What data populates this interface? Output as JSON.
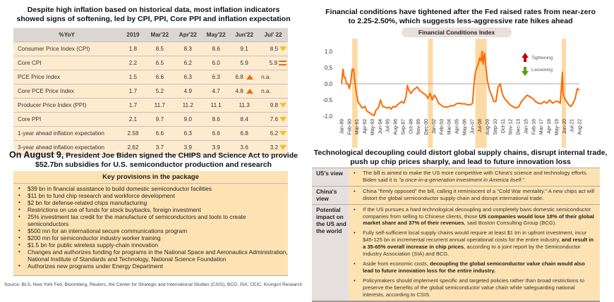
{
  "left_top": {
    "title_line1": "Despite high inflation based on historical data, most inflation indicators",
    "title_line2": "showed signs of softening, led by CPI, PPI, Core PPI and inflation expectation"
  },
  "inflation_table": {
    "headers": [
      "%YoY",
      "2019",
      "Mar'22",
      "Apr'22",
      "May'22",
      "Jun'22",
      "Jul' 22"
    ],
    "rows": [
      {
        "label": "Consumer Price Index (CPI)",
        "values": [
          "1.8",
          "8.5",
          "8.3",
          "8.6",
          "9.1"
        ],
        "last": "8.5",
        "trend": "down"
      },
      {
        "label": "Core CPI",
        "values": [
          "2.2",
          "6.5",
          "6.2",
          "6.0",
          "5.9"
        ],
        "last": "5.9",
        "trend": "flat"
      },
      {
        "label": "PCE Price Index",
        "values": [
          "1.5",
          "6.6",
          "6.3",
          "6.3",
          "6.8"
        ],
        "last": "n.a.",
        "trend": "up"
      },
      {
        "label": "Core PCE Price Index",
        "values": [
          "1.7",
          "5.2",
          "4.9",
          "4.7",
          "4.8"
        ],
        "last": "n.a.",
        "trend": "up"
      },
      {
        "label": "Producer Price Index (PPI)",
        "values": [
          "1.7",
          "11.7",
          "11.2",
          "11.1",
          "11.3"
        ],
        "last": "9.8",
        "trend": "down"
      },
      {
        "label": "Core PPI",
        "values": [
          "2.1",
          "9.7",
          "9.0",
          "8.6",
          "8.4"
        ],
        "last": "7.6",
        "trend": "down"
      },
      {
        "label": "1-year ahead inflation expectation",
        "values": [
          "2.58",
          "6.6",
          "6.3",
          "6.6",
          "6.8"
        ],
        "last": "6.2",
        "trend": "down"
      },
      {
        "label": "3-year ahead inflation expectation",
        "values": [
          "2.62",
          "3.7",
          "3.9",
          "3.9",
          "3.6"
        ],
        "last": "3.2",
        "trend": "down"
      }
    ],
    "trend_colors": {
      "down": "#f2c21b",
      "up": "#f26a0d",
      "flat": "#f26a0d"
    }
  },
  "chips_act": {
    "title_prefix": "On August 9,",
    "title_rest": " President Joe Biden signed the CHIPS and Science Act to provide",
    "title_line2": "$52.7bn subsidies for U.S. semiconductor production and research",
    "box_title": "Key provisions in the package",
    "items": [
      "$39 bn in financial assistance to build domestic semiconductor facilities",
      "$11 bn to fund chip research and workforce development",
      "$2 bn for defense-related chips manufacturing",
      "Restrictions on use of funds for stock buybacks, foreign investment",
      "25% investment tax credit for the manufacture of semiconductors and tools to create semiconductors",
      "$500 mn for an international secure communications program",
      "$200 mn for semiconductor industry worker training",
      "$1.5 bn for public wireless supply-chain innovation",
      "Changes and authorizes funding for programs in the National Space and Aeronautics Administration, National Institute of Standards and Technology, National Science Foundation",
      "Authorizes new programs under Energy Department"
    ]
  },
  "source": "Source: BLS, New York Fed, Bloomberg, Reuters, the Center for Strategic and International Studies (CSIS), BCG, SIA, CEIC, Krungsri Research",
  "right_top": {
    "title_line1": "Financial conditions have tightened after the Fed raised rates from near-zero",
    "title_line2": "to 2.25-2.50%, which suggests less-aggressive rate hikes ahead"
  },
  "chart_data": {
    "type": "line",
    "title": "Financial Conditions Index",
    "xlabel": "",
    "ylabel": "",
    "ylim": [
      -1.0,
      1.0
    ],
    "yticks": [
      "1.0",
      "0.5",
      "0.0",
      "-0.5",
      "-1.0"
    ],
    "ytick_values": [
      1.0,
      0.5,
      0.0,
      -0.5,
      -1.0
    ],
    "xtick_labels": [
      "Jan-89",
      "Feb-90",
      "Mar-91",
      "Apr-92",
      "May-93",
      "Jun-94",
      "Jul-95",
      "Aug-96",
      "Sep-97",
      "Oct-98",
      "Nov-99",
      "Dec-00",
      "Jan-02",
      "Feb-03",
      "Mar-04",
      "Apr-05",
      "May-06",
      "Jun-07",
      "Jul-08",
      "Aug-09",
      "Sep-10",
      "Oct-11",
      "Nov-12",
      "Dec-13",
      "Jan-15",
      "Feb-16",
      "Mar-17",
      "Apr-18",
      "May-19",
      "Jun-20",
      "Jul-21",
      "Aug-22"
    ],
    "x_range": [
      1989.0,
      2022.6
    ],
    "zero_line": true,
    "legend": [
      {
        "label": "Tightening",
        "icon": "arrow-up",
        "color": "#c00000"
      },
      {
        "label": "Loosening",
        "icon": "arrow-down",
        "color": "#5a9e1f"
      }
    ],
    "legend_position": "top-right",
    "recession_bands": [
      [
        1990.5,
        1991.25
      ],
      [
        2001.2,
        2001.9
      ],
      [
        2007.9,
        2009.5
      ],
      [
        2020.1,
        2020.5
      ]
    ],
    "series": [
      {
        "name": "Financial Conditions Index",
        "color": "#ff6a00",
        "x": [
          1989.0,
          1989.2,
          1989.35,
          1989.5,
          1989.7,
          1989.9,
          1990.1,
          1990.3,
          1990.5,
          1990.7,
          1990.9,
          1991.1,
          1991.3,
          1991.6,
          1991.9,
          1992.3,
          1992.6,
          1993.0,
          1993.3,
          1993.6,
          1993.9,
          1994.2,
          1994.5,
          1994.8,
          1995.1,
          1995.4,
          1995.7,
          1996.0,
          1996.3,
          1996.6,
          1996.9,
          1997.2,
          1997.5,
          1997.8,
          1998.1,
          1998.3,
          1998.5,
          1998.8,
          1999.1,
          1999.4,
          1999.7,
          2000.0,
          2000.3,
          2000.6,
          2000.9,
          2001.2,
          2001.5,
          2001.8,
          2002.1,
          2002.4,
          2002.7,
          2003.0,
          2003.3,
          2003.6,
          2004.0,
          2004.4,
          2004.8,
          2005.2,
          2005.6,
          2006.0,
          2006.4,
          2006.8,
          2007.2,
          2007.5,
          2007.7,
          2007.9,
          2008.1,
          2008.3,
          2008.5,
          2008.7,
          2008.85,
          2009.0,
          2009.2,
          2009.4,
          2009.6,
          2009.9,
          2010.2,
          2010.5,
          2010.8,
          2011.1,
          2011.4,
          2011.7,
          2012.0,
          2012.4,
          2012.8,
          2013.2,
          2013.6,
          2014.0,
          2014.4,
          2014.8,
          2015.2,
          2015.6,
          2016.0,
          2016.4,
          2016.8,
          2017.2,
          2017.6,
          2018.0,
          2018.4,
          2018.8,
          2019.2,
          2019.6,
          2019.9,
          2020.2,
          2020.3,
          2020.5,
          2020.8,
          2021.1,
          2021.4,
          2021.7,
          2022.0,
          2022.3,
          2022.6
        ],
        "y": [
          0.0,
          0.45,
          0.2,
          0.2,
          0.0,
          0.0,
          -0.15,
          0.05,
          0.45,
          0.45,
          0.0,
          -0.3,
          -0.55,
          -0.65,
          -0.75,
          -0.7,
          -0.85,
          -0.9,
          -0.95,
          -0.98,
          -0.8,
          -0.75,
          -0.5,
          -0.7,
          -0.72,
          -0.75,
          -0.72,
          -0.78,
          -0.7,
          -0.72,
          -0.65,
          -0.6,
          -0.55,
          -0.6,
          -0.4,
          -0.05,
          -0.2,
          -0.3,
          -0.2,
          -0.15,
          -0.1,
          -0.2,
          -0.25,
          -0.3,
          -0.35,
          -0.45,
          -0.3,
          -0.5,
          -0.35,
          -0.45,
          -0.6,
          -0.65,
          -0.7,
          -0.72,
          -0.72,
          -0.68,
          -0.68,
          -0.62,
          -0.6,
          -0.62,
          -0.62,
          -0.65,
          -0.65,
          -0.6,
          0.0,
          0.35,
          0.5,
          0.6,
          0.8,
          0.7,
          1.0,
          0.6,
          0.95,
          0.5,
          0.1,
          -0.2,
          -0.35,
          -0.55,
          -0.55,
          -0.1,
          0.0,
          -0.3,
          -0.45,
          -0.55,
          -0.65,
          -0.7,
          -0.75,
          -0.72,
          -0.55,
          -0.45,
          -0.35,
          -0.4,
          -0.45,
          -0.55,
          -0.6,
          -0.62,
          -0.55,
          -0.6,
          -0.5,
          -0.6,
          -0.55,
          -0.55,
          -0.6,
          0.35,
          -0.3,
          -0.45,
          -0.55,
          -0.65,
          -0.7,
          -0.6,
          -0.45,
          -0.15,
          -0.2
        ]
      }
    ]
  },
  "right_bottom": {
    "title_line1": "Technological decoupling could distort global supply chains, disrupt internal trade,",
    "title_line2": "push up chip prices sharply, and lead to future innovation loss",
    "rows": [
      {
        "key": "US's view",
        "bullets": [
          {
            "parts": [
              {
                "t": "The bill is aimed to make the US more competitive with China's science and technology efforts. Biden said it is ",
                "s": "n"
              },
              {
                "t": "\"a once-in-a-generation investment in America itself.\".",
                "s": "i"
              }
            ]
          }
        ]
      },
      {
        "key": "China's view",
        "bullets": [
          {
            "parts": [
              {
                "t": "China \"firmly opposed\" the bill, calling it reminiscent of a \"Cold War mentality.\" A new chips act will distort the global semiconductor supply chain and disrupt international trade.",
                "s": "n"
              }
            ]
          }
        ]
      },
      {
        "key": "Potential impact on the US and the world",
        "bullets": [
          {
            "parts": [
              {
                "t": "If the US pursues a hard technological decoupling and completely bans domestic semiconductor companies from selling to Chinese clients, those ",
                "s": "n"
              },
              {
                "t": "US companies would lose 18% of their global market share and 37% of their revenues",
                "s": "b"
              },
              {
                "t": ", said Boston Consulting Group (BCG).",
                "s": "n"
              }
            ]
          },
          {
            "parts": [
              {
                "t": "Fully self-sufficient local supply chains would require at least $1 trn in upfront investment, incur $45-125 bn in incremental recurrent annual operational costs for the entire industry, ",
                "s": "n"
              },
              {
                "t": "and result in a 35-65% overall increase in chip prices",
                "s": "b"
              },
              {
                "t": ", according to a joint report by the Semiconductor Industry Association (SIA) and BCG.",
                "s": "n"
              }
            ]
          },
          {
            "parts": [
              {
                "t": "Aside from economic costs, ",
                "s": "n"
              },
              {
                "t": "decoupling the global semiconductor value chain would also lead to future innovation loss for the entire industry.",
                "s": "b"
              }
            ]
          },
          {
            "parts": [
              {
                "t": "Policymakers should implement specific and targeted policies rather than broad restrictions to preserve the benefits of the global semiconductor value chain while safeguarding national interests, according to CSIS.",
                "s": "n"
              }
            ]
          }
        ]
      }
    ]
  }
}
